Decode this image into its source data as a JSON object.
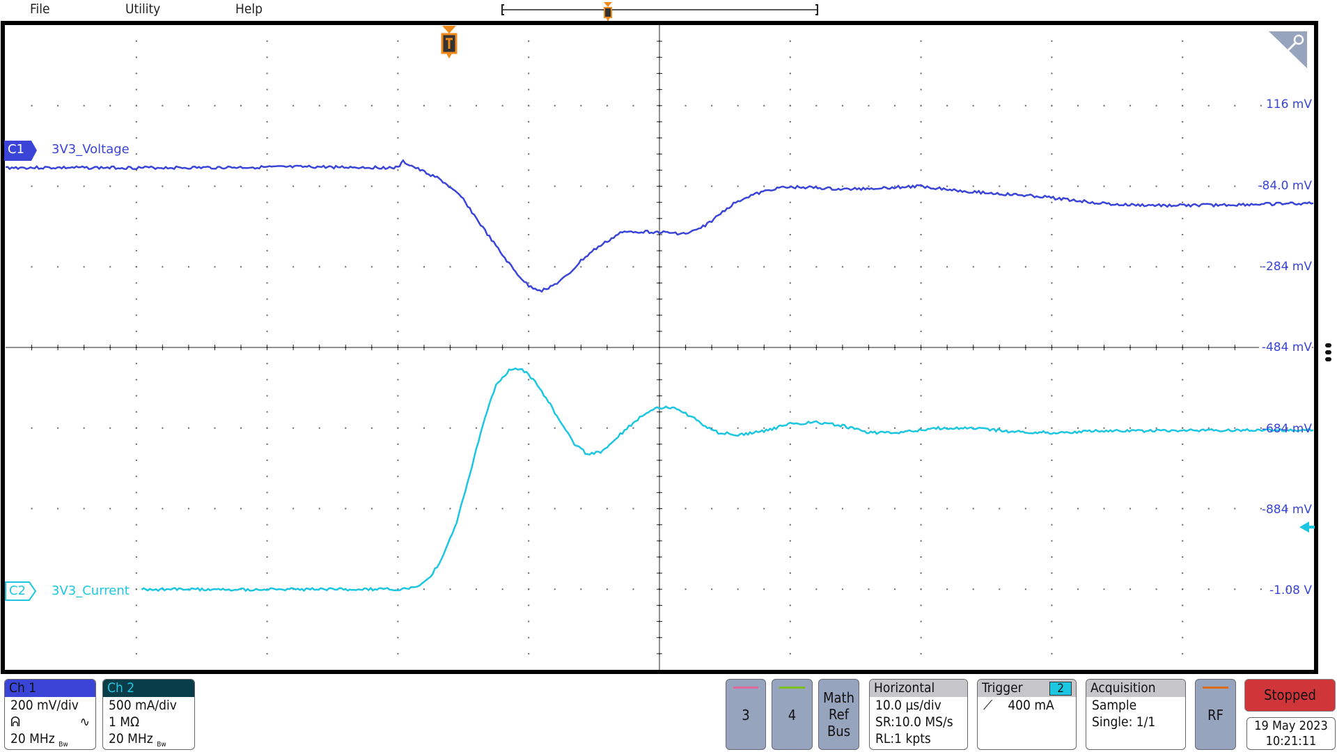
{
  "menu": {
    "items": [
      "File",
      "Utility",
      "Help"
    ]
  },
  "colors": {
    "ch1": "#3a45d8",
    "ch2": "#1cc6e0",
    "trigger": "#f08a1c",
    "ch3": "#e0679a",
    "ch4": "#7cc11a",
    "rf": "#e06a1c",
    "stopped": "#d0353a"
  },
  "icons": {
    "trigger_marker": "trigger-T-icon",
    "zoom": "magnifier-icon",
    "more": "vertical-ellipsis-icon",
    "trigger_level": "arrow-left-icon",
    "ch1_coupling": "probe-icon",
    "ch1_bw": "bandwidth-icon",
    "trigger_slope": "rising-edge-icon"
  },
  "graticule": {
    "voltage_labels": [
      "116 mV",
      "-84.0 mV",
      "-284 mV",
      "-484 mV",
      "-684 mV",
      "-884 mV",
      "-1.08 V"
    ]
  },
  "channels": {
    "c1": {
      "tag": "C1",
      "name": "3V3_Voltage"
    },
    "c2": {
      "tag": "C2",
      "name": "3V3_Current"
    }
  },
  "chart_data": {
    "type": "line",
    "xlabel": "",
    "ylabel": "",
    "x_unit": "µs",
    "xlim": [
      -34,
      66
    ],
    "grid": true,
    "series": [
      {
        "name": "3V3_Voltage",
        "unit": "mV",
        "color": "#3a45d8",
        "points": [
          [
            -34,
            -38
          ],
          [
            -20,
            -38
          ],
          [
            -10,
            -36
          ],
          [
            -4,
            -38
          ],
          [
            -3.6,
            -23
          ],
          [
            -2.3,
            -44
          ],
          [
            -1,
            -63
          ],
          [
            -0.4,
            -76
          ],
          [
            1,
            -116
          ],
          [
            2,
            -164
          ],
          [
            3,
            -210
          ],
          [
            4,
            -255
          ],
          [
            5,
            -297
          ],
          [
            6,
            -332
          ],
          [
            7,
            -343
          ],
          [
            8,
            -328
          ],
          [
            9,
            -305
          ],
          [
            10,
            -269
          ],
          [
            11,
            -242
          ],
          [
            12,
            -221
          ],
          [
            13,
            -200
          ],
          [
            14,
            -196
          ],
          [
            16,
            -198
          ],
          [
            18,
            -202
          ],
          [
            19,
            -191
          ],
          [
            20,
            -170
          ],
          [
            21,
            -143
          ],
          [
            22,
            -120
          ],
          [
            23,
            -107
          ],
          [
            25,
            -88
          ],
          [
            27,
            -86
          ],
          [
            30,
            -92
          ],
          [
            33,
            -88
          ],
          [
            36,
            -84
          ],
          [
            39,
            -95
          ],
          [
            42,
            -103
          ],
          [
            45,
            -109
          ],
          [
            48,
            -120
          ],
          [
            51,
            -130
          ],
          [
            55,
            -132
          ],
          [
            60,
            -130
          ],
          [
            66,
            -126
          ]
        ]
      },
      {
        "name": "3V3_Current",
        "unit": "mA",
        "color": "#1cc6e0",
        "points": [
          [
            -23.6,
            16
          ],
          [
            -15,
            16
          ],
          [
            -8,
            16
          ],
          [
            -4,
            16
          ],
          [
            -2.5,
            26
          ],
          [
            -1.5,
            95
          ],
          [
            -0.5,
            226
          ],
          [
            0.5,
            437
          ],
          [
            1.5,
            726
          ],
          [
            2.5,
            1042
          ],
          [
            3.5,
            1289
          ],
          [
            4.5,
            1374
          ],
          [
            5.5,
            1384
          ],
          [
            6.5,
            1305
          ],
          [
            7.5,
            1184
          ],
          [
            8.5,
            1042
          ],
          [
            9.5,
            921
          ],
          [
            10.5,
            853
          ],
          [
            11.5,
            868
          ],
          [
            12.5,
            937
          ],
          [
            13.5,
            1016
          ],
          [
            14.5,
            1084
          ],
          [
            15.5,
            1137
          ],
          [
            16.5,
            1147
          ],
          [
            17.5,
            1132
          ],
          [
            18.5,
            1084
          ],
          [
            19.5,
            1032
          ],
          [
            20.5,
            989
          ],
          [
            22,
            974
          ],
          [
            24,
            1000
          ],
          [
            26,
            1042
          ],
          [
            28,
            1053
          ],
          [
            30,
            1032
          ],
          [
            32,
            989
          ],
          [
            34,
            984
          ],
          [
            37,
            1016
          ],
          [
            40,
            1016
          ],
          [
            43,
            995
          ],
          [
            46,
            989
          ],
          [
            50,
            1000
          ],
          [
            55,
            1000
          ],
          [
            60,
            1005
          ],
          [
            66,
            1005
          ]
        ]
      }
    ]
  },
  "ch1_panel": {
    "title": "Ch 1",
    "scale": "200 mV/div",
    "bandwidth": "20 MHz",
    "bw_tag": "Bw"
  },
  "ch2_panel": {
    "title": "Ch 2",
    "scale": "500 mA/div",
    "impedance": "1 MΩ",
    "bandwidth": "20 MHz",
    "bw_tag": "Bw"
  },
  "buttons": {
    "ch3": "3",
    "ch4": "4",
    "math": [
      "Math",
      "Ref",
      "Bus"
    ],
    "rf": "RF"
  },
  "horizontal": {
    "title": "Horizontal",
    "scale": "10.0 µs/div",
    "sr": "SR:10.0 MS/s",
    "rl": "RL:1 kpts"
  },
  "trigger": {
    "title": "Trigger",
    "source": "2",
    "level": "400 mA"
  },
  "acquisition": {
    "title": "Acquisition",
    "mode": "Sample",
    "single": "Single: 1/1"
  },
  "status": {
    "state": "Stopped",
    "date": "19 May 2023",
    "time": "10:21:11"
  }
}
